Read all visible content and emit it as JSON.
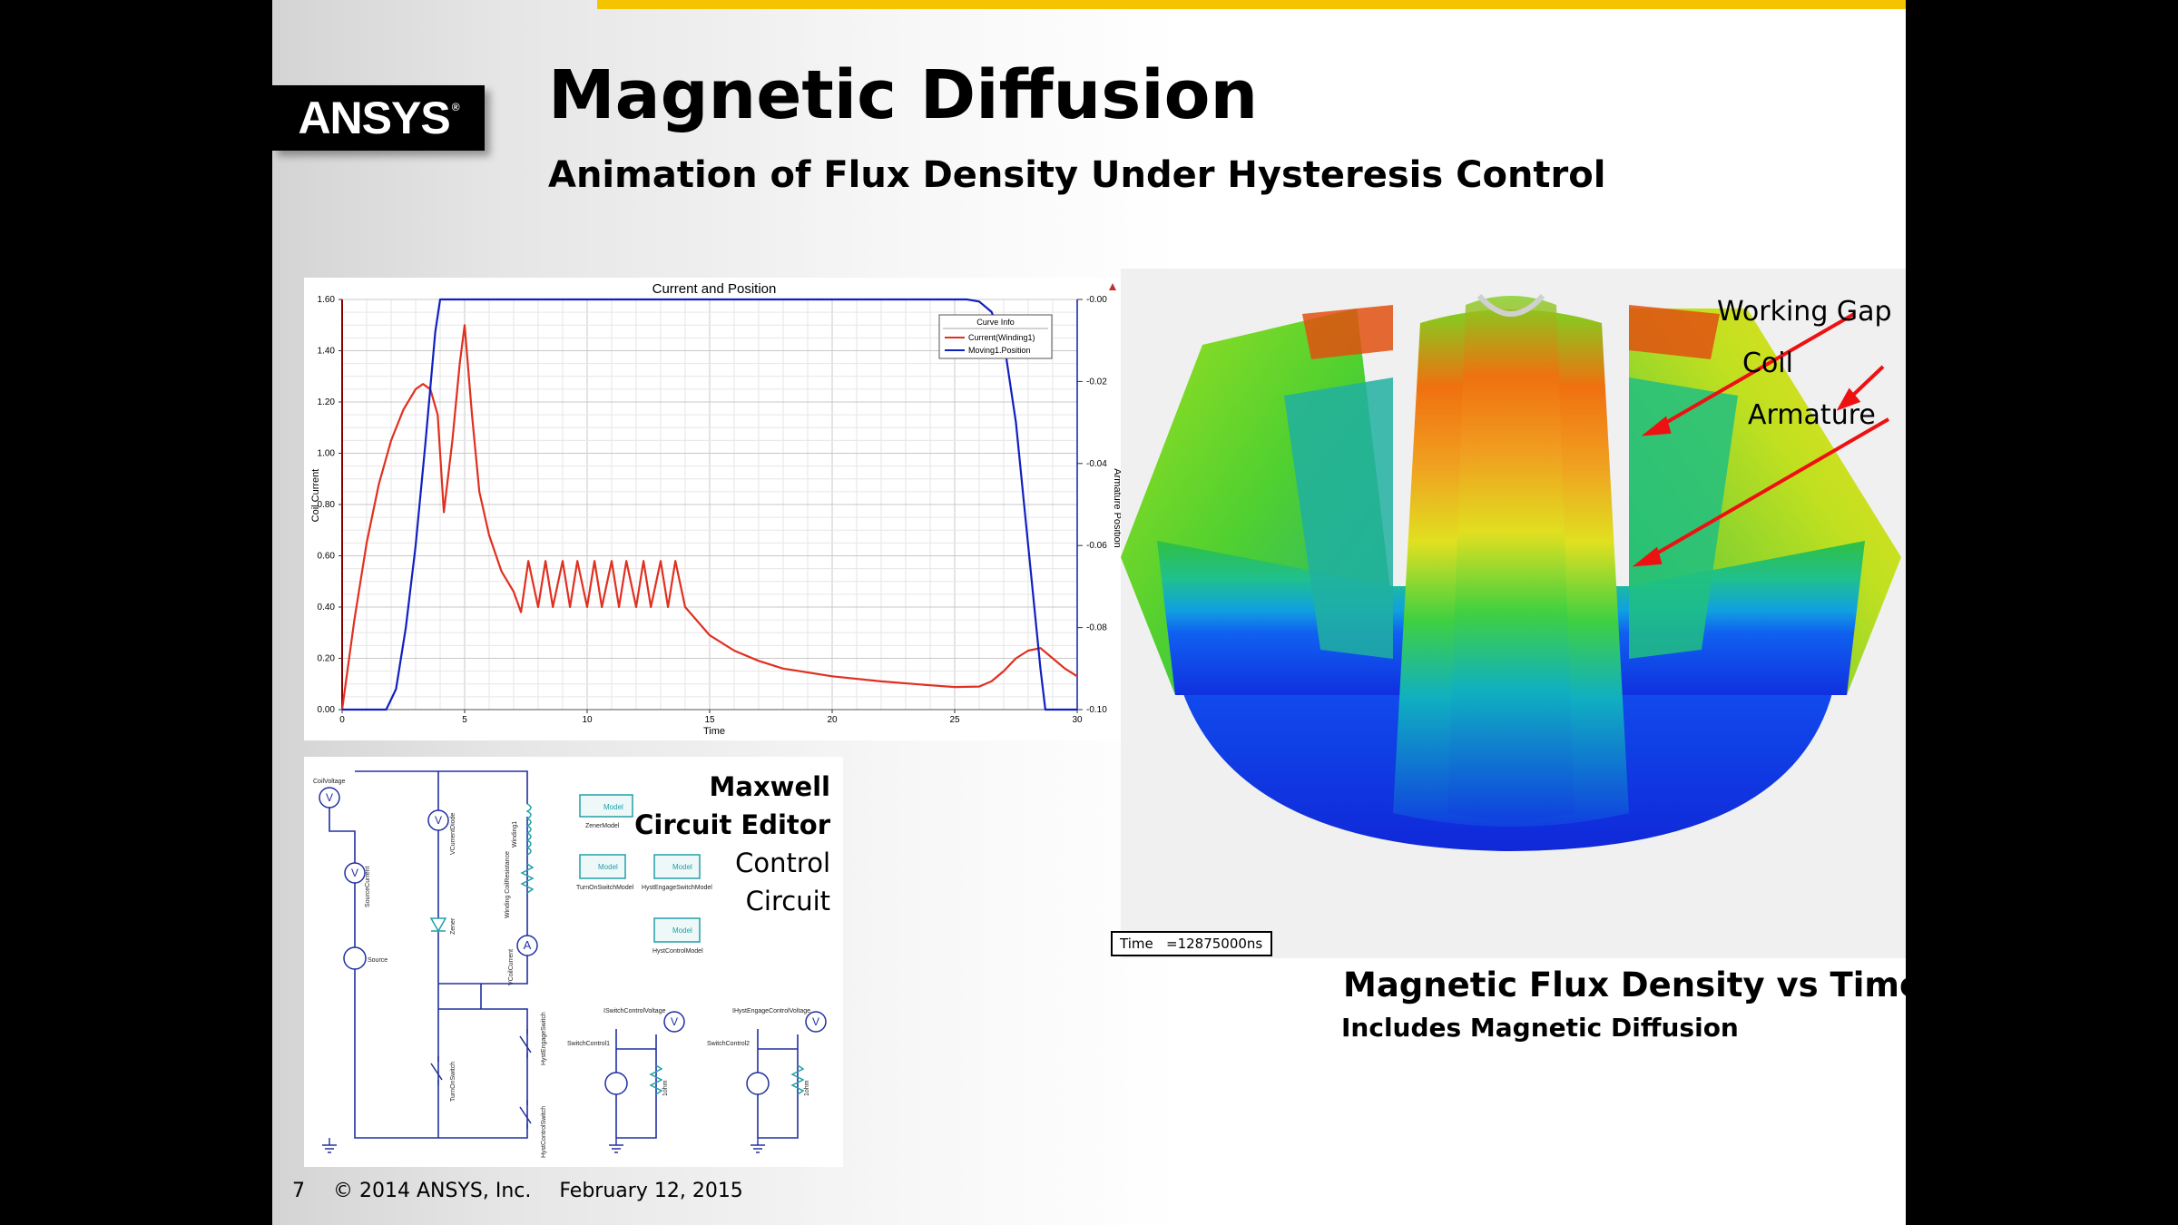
{
  "slide": {
    "logo_text": "ANSYS",
    "logo_mark": "®",
    "title": "Magnetic Diffusion",
    "subtitle": "Animation of Flux Density Under Hysteresis Control",
    "footer": {
      "page_number": "7",
      "copyright": "© 2014 ANSYS, Inc.",
      "date": "February 12, 2015"
    },
    "circuit": {
      "title_line1": "Maxwell",
      "title_line2": "Circuit Editor",
      "title_line3": "Control",
      "title_line4": "Circuit",
      "labels": {
        "coil_voltage": "CoilVoltage",
        "source_current": "SourceCurrent",
        "source": "Source",
        "v_current_diode": "VCurrentDiode",
        "zener": "Zener",
        "winding1": "Winding1",
        "winding_coil_resistance": "Winding CoilResistance",
        "v_coil_current": "VCoilCurrent",
        "zener_model": "ZenerModel",
        "turn_on_switch_model": "TurnOnSwitchModel",
        "hyst_engage_switch_model": "HystEngageSwitchModel",
        "hyst_control_model": "HystControlModel",
        "model": "Model",
        "turn_on_switch": "TurnOnSwitch",
        "hyst_engage_switch": "HystEngageSwitch",
        "hyst_control_switch": "HystControlSwitch",
        "switch_control_voltage": "ISwitchControlVoltage",
        "hyst_engage_control_voltage": "IHystEngageControlVoltage",
        "switch_control1": "SwitchControl1",
        "switch_control2": "SwitchControl2",
        "one_ohm": "1ohm"
      }
    },
    "simulation": {
      "time_readout": "Time   =12875000ns",
      "callouts": [
        "Working Gap",
        "Coil",
        "Armature"
      ],
      "caption": "Magnetic Flux Density vs Time",
      "caption_sub": "Includes Magnetic Diffusion"
    },
    "colors": {
      "top_bar": "#f5c400",
      "current_series": "#e03020",
      "position_series": "#1020c0",
      "circuit_wire": "#2030a0",
      "circuit_component": "#20a0a8"
    }
  },
  "chart_data": {
    "type": "line",
    "title": "Current and Position",
    "xlabel": "Time",
    "ylabel": "Coil Current",
    "y2label": "Armature Position",
    "xlim": [
      0,
      30
    ],
    "ylim": [
      0,
      1.6
    ],
    "y2lim": [
      -0.1,
      0.0
    ],
    "x_ticks": [
      "0",
      "5",
      "10",
      "15",
      "20",
      "25",
      "30"
    ],
    "y_ticks": [
      "0.00",
      "0.20",
      "0.40",
      "0.60",
      "0.80",
      "1.00",
      "1.20",
      "1.40",
      "1.60"
    ],
    "y2_ticks": [
      "-0.00",
      "-0.02",
      "-0.04",
      "-0.06",
      "-0.08",
      "-0.10"
    ],
    "legend_title": "Curve Info",
    "legend_position": "top-right",
    "grid": true,
    "series": [
      {
        "name": "Current(Winding1)",
        "axis": "left",
        "x": [
          0,
          0.5,
          1.0,
          1.5,
          2.0,
          2.5,
          3.0,
          3.3,
          3.6,
          3.9,
          4.15,
          4.5,
          4.8,
          5.0,
          5.3,
          5.6,
          6.0,
          6.5,
          7.0,
          7.3,
          7.6,
          8.0,
          8.3,
          8.6,
          9.0,
          9.3,
          9.6,
          10.0,
          10.3,
          10.6,
          11.0,
          11.3,
          11.6,
          12.0,
          12.3,
          12.6,
          13.0,
          13.3,
          13.6,
          14.0,
          15.0,
          16.0,
          17.0,
          18.0,
          20.0,
          22.0,
          24.0,
          25.0,
          26.0,
          26.5,
          27.0,
          27.5,
          28.0,
          28.5,
          29.0,
          29.5,
          30.0
        ],
        "values": [
          0,
          0.35,
          0.65,
          0.88,
          1.05,
          1.17,
          1.25,
          1.27,
          1.25,
          1.15,
          0.77,
          1.05,
          1.35,
          1.5,
          1.15,
          0.85,
          0.68,
          0.54,
          0.46,
          0.38,
          0.58,
          0.4,
          0.58,
          0.4,
          0.58,
          0.4,
          0.58,
          0.4,
          0.58,
          0.4,
          0.58,
          0.4,
          0.58,
          0.4,
          0.58,
          0.4,
          0.58,
          0.4,
          0.58,
          0.4,
          0.29,
          0.23,
          0.19,
          0.16,
          0.13,
          0.11,
          0.095,
          0.088,
          0.09,
          0.11,
          0.15,
          0.2,
          0.23,
          0.24,
          0.2,
          0.16,
          0.13
        ]
      },
      {
        "name": "Moving1.Position",
        "axis": "right",
        "x": [
          0,
          1.8,
          2.2,
          2.6,
          3.0,
          3.4,
          3.8,
          4.0,
          25.5,
          26.0,
          26.5,
          27.0,
          27.5,
          28.0,
          28.5,
          28.7,
          30.0
        ],
        "values": [
          -0.1,
          -0.1,
          -0.095,
          -0.08,
          -0.06,
          -0.035,
          -0.008,
          0.0,
          0.0,
          -0.0005,
          -0.003,
          -0.01,
          -0.03,
          -0.06,
          -0.09,
          -0.1,
          -0.1
        ]
      }
    ]
  }
}
